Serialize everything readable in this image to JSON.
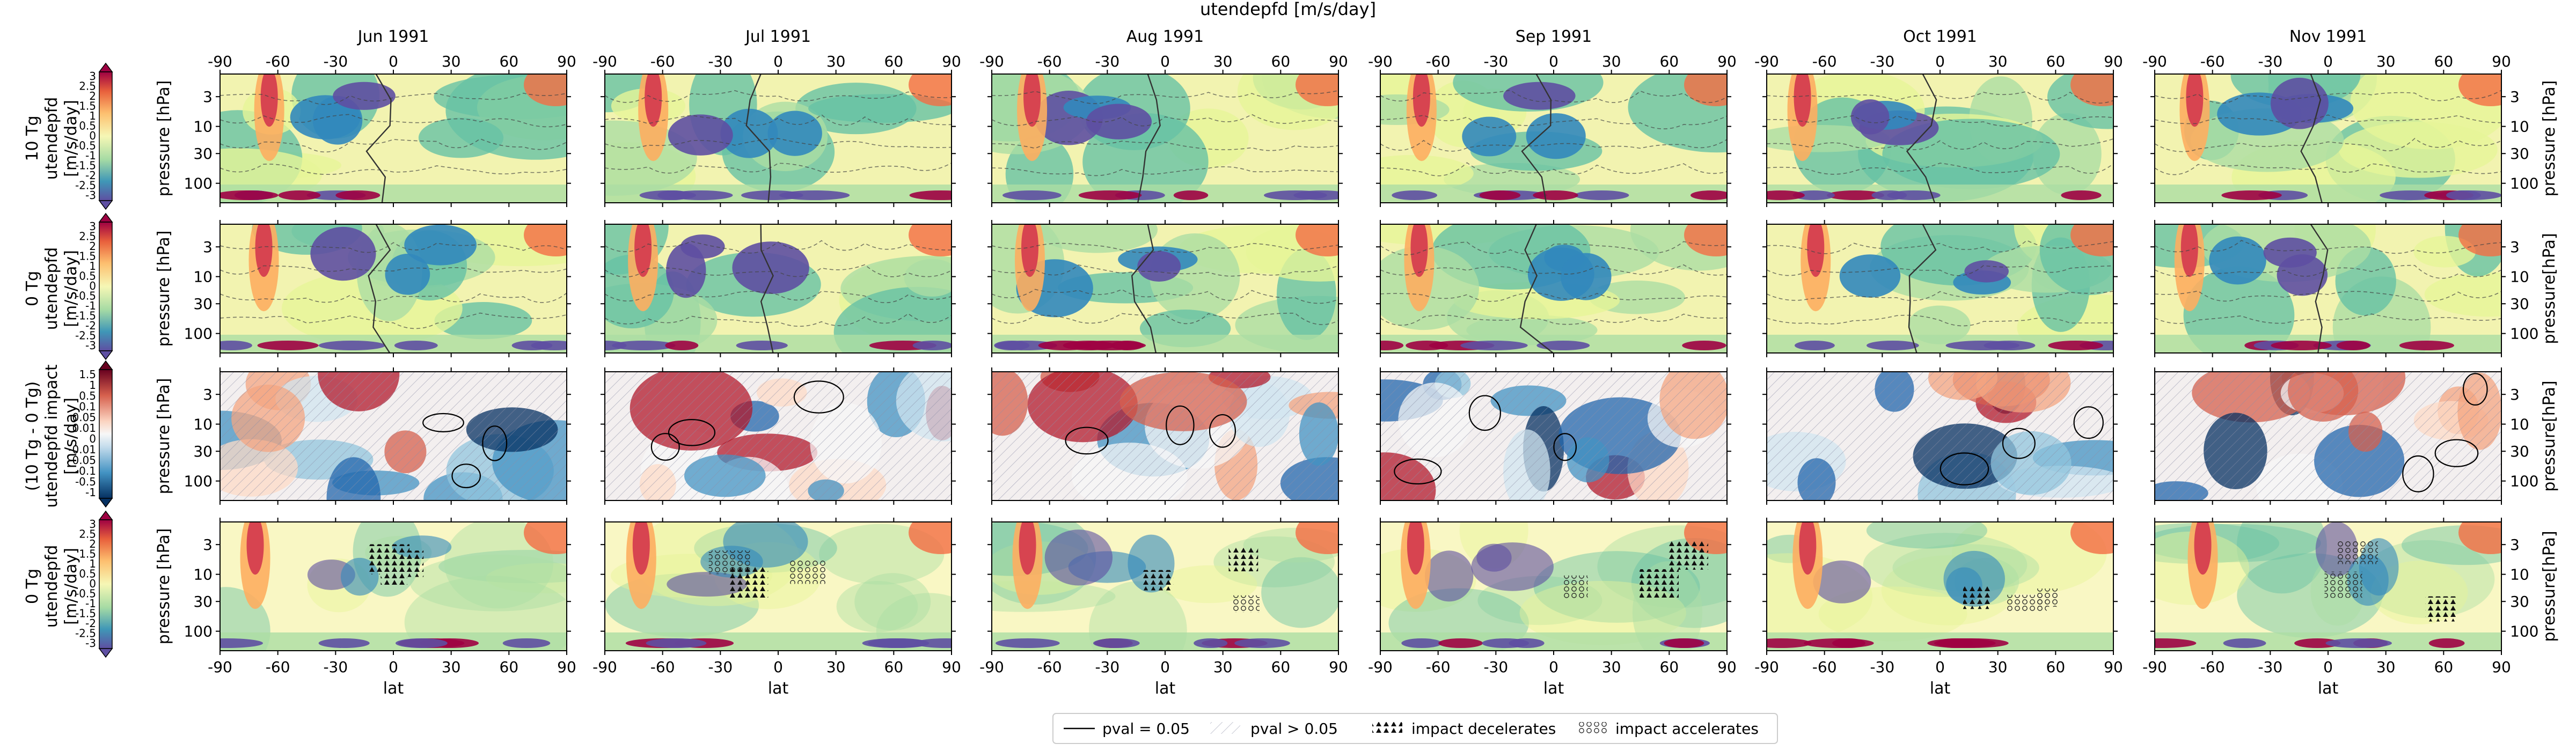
{
  "figure": {
    "suptitle": "utendepfd [m/s/day]"
  },
  "chart_data": {
    "type": "heatmap",
    "columns": [
      "Jun 1991",
      "Jul 1991",
      "Aug 1991",
      "Sep 1991",
      "Oct 1991",
      "Nov 1991"
    ],
    "x_axis": {
      "label": "lat",
      "range": [
        -90,
        90
      ],
      "ticks": [
        -90,
        -60,
        -30,
        0,
        30,
        60,
        90
      ]
    },
    "y_axis": {
      "label": "pressure [hPa]",
      "label_right_alt": "pressure[hPa]",
      "scale": "log",
      "inverted": true,
      "ticks": [
        3,
        10,
        30,
        100
      ]
    },
    "rows": [
      {
        "id": "10tg",
        "colorbar_label": [
          "10 Tg",
          "utendepfd",
          "[m/s/day]"
        ],
        "cmap": "Spectral_r",
        "colorbar_ticks": [
          "3",
          "2.5",
          "2",
          "1.5",
          "1",
          "0.5",
          "0",
          "-0.5",
          "-1",
          "-1.5",
          "-2",
          "-2.5",
          "-3"
        ],
        "right_ylabel": "pressure [hPa]"
      },
      {
        "id": "0tg",
        "colorbar_label": [
          "0 Tg",
          "utendepfd",
          "[m/s/day]"
        ],
        "cmap": "Spectral_r",
        "colorbar_ticks": [
          "3",
          "2.5",
          "2",
          "1.5",
          "1",
          "0.5",
          "0",
          "-0.5",
          "-1",
          "-1.5",
          "-2",
          "-2.5",
          "-3"
        ],
        "right_ylabel": "pressure[hPa]"
      },
      {
        "id": "impact",
        "colorbar_label": [
          "(10 Tg - 0 Tg)",
          "utendepfd impact",
          "[m/s/day]"
        ],
        "cmap": "RdBu_r",
        "colorbar_ticks": [
          "1.5",
          "1",
          "0.5",
          "0.1",
          "0.05",
          "0.01",
          "0",
          "-0.01",
          "-0.05",
          "-0.1",
          "-0.5",
          "-1"
        ],
        "right_ylabel": "pressure[hPa]"
      },
      {
        "id": "0tg_stipple",
        "colorbar_label": [
          "0 Tg",
          "utendepfd",
          "[m/s/day]"
        ],
        "cmap": "Spectral_r",
        "colorbar_ticks": [
          "3",
          "2.5",
          "2",
          "1.5",
          "1",
          "0.5",
          "0",
          "-0.5",
          "-1",
          "-1.5",
          "-2",
          "-2.5",
          "-3"
        ],
        "right_ylabel": "pressure[hPa]"
      }
    ],
    "legend": {
      "placement": "bottom-center",
      "entries": [
        "pval = 0.05",
        "pval > 0.05",
        "impact decelerates",
        "impact accelerates"
      ]
    }
  }
}
